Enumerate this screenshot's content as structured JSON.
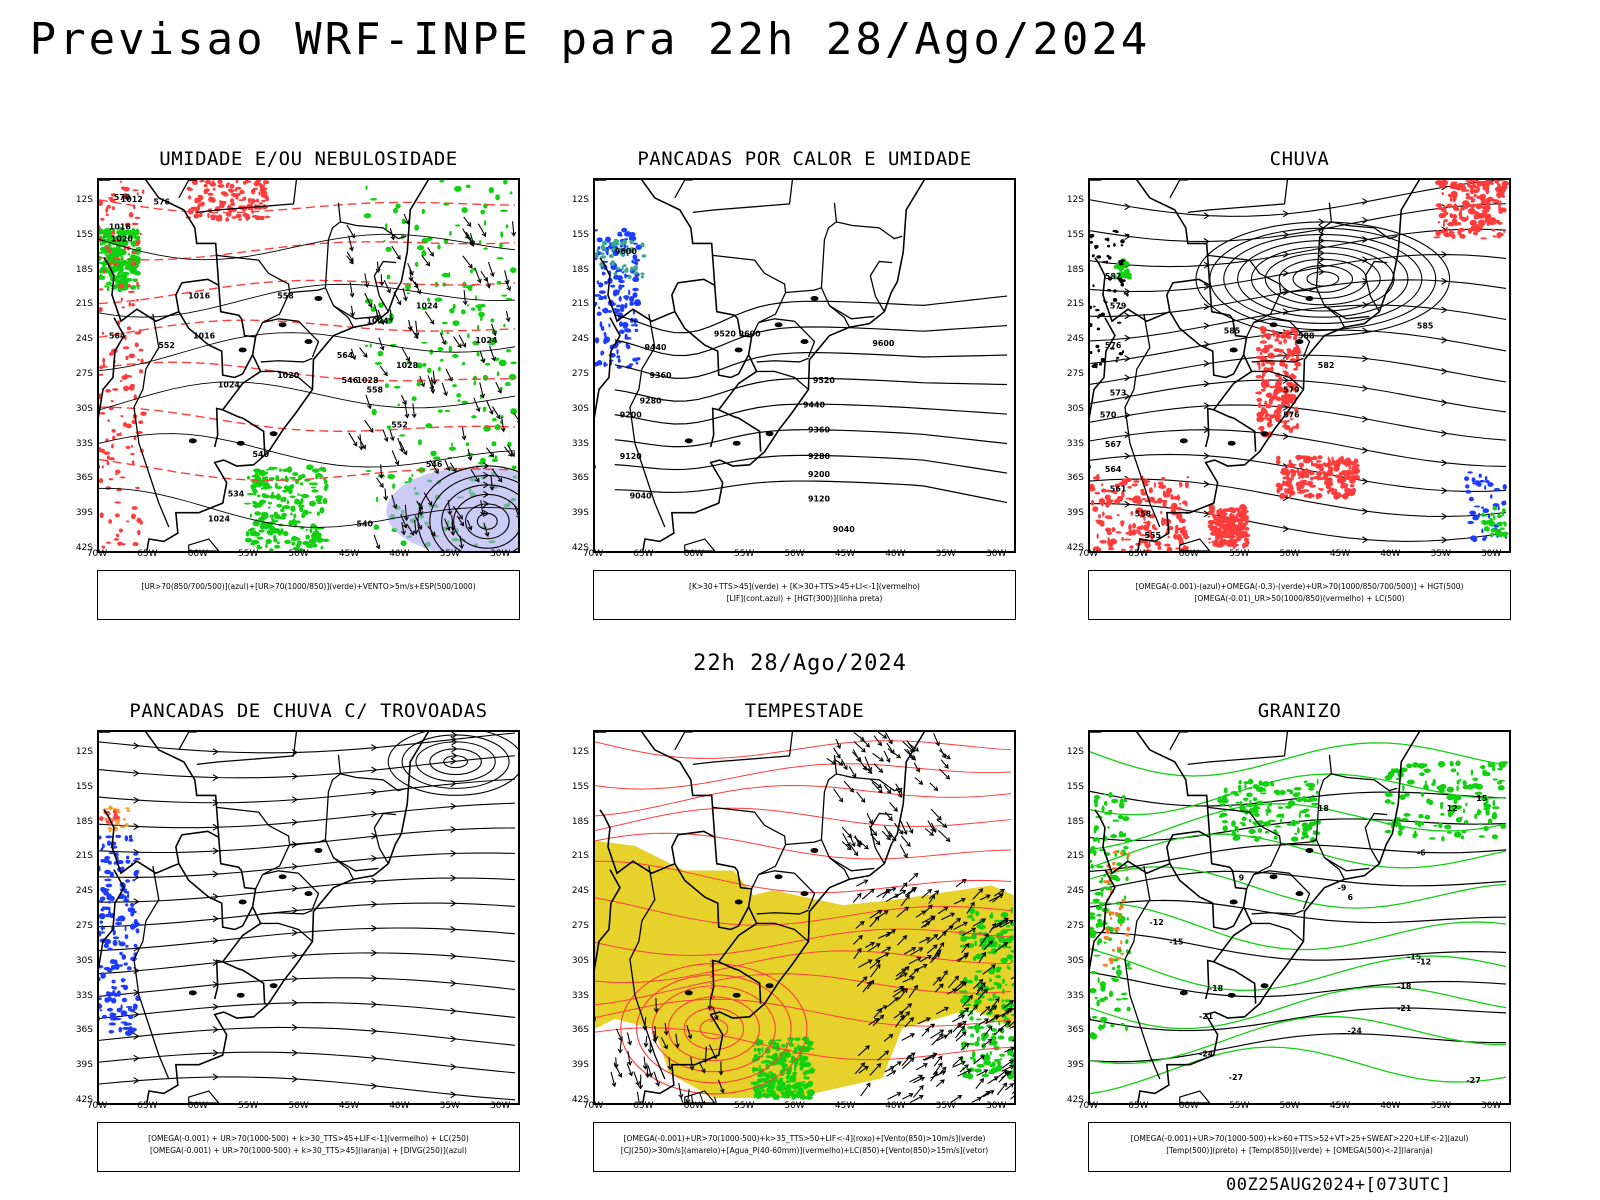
{
  "title": "Previsao WRF-INPE  para 22h 28/Ago/2024",
  "mid_date": "22h 28/Ago/2024",
  "footer_stamp": "00Z25AUG2024+[073UTC]",
  "lat_ticks": [
    "12S",
    "15S",
    "18S",
    "21S",
    "24S",
    "27S",
    "30S",
    "33S",
    "36S",
    "39S",
    "42S"
  ],
  "lon_ticks": [
    "70W",
    "65W",
    "60W",
    "55W",
    "50W",
    "45W",
    "40W",
    "35W",
    "30W"
  ],
  "colors": {
    "red": "#ff3c3c",
    "green": "#10d010",
    "blue": "#1e3cff",
    "yellow": "#e6d22a",
    "lavender": "#a8a8f0",
    "black": "#000000"
  },
  "panels": [
    {
      "id": "umidade",
      "title": "UMIDADE E/OU NEBULOSIDADE",
      "legend": [
        "[UR>70(850/700/500)](azul)+[UR>70(1000/850)](verde)+VENTO>5m/s+ESP(500/1000)"
      ],
      "contour_labels": [
        "1012",
        "1016",
        "1020",
        "1016",
        "1016",
        "1020",
        "1024",
        "1024",
        "1028",
        "1024",
        "1028",
        "1024",
        "1024",
        "570",
        "576",
        "564",
        "552",
        "558",
        "546",
        "540",
        "534",
        "540",
        "546",
        "552",
        "558",
        "564"
      ]
    },
    {
      "id": "pancadas-calor",
      "title": "PANCADAS POR CALOR E UMIDADE",
      "legend": [
        "[K>30+TTS>45](verde) + [K>30+TTS>45+LI<-1](vermelho)",
        "[LIF](cont.azul) + [HGT(300)](linha preta)"
      ],
      "contour_labels": [
        "9600",
        "9520",
        "9440",
        "9360",
        "9280",
        "9200",
        "9120",
        "9040",
        "9600",
        "9520",
        "9440",
        "9360",
        "9280",
        "9200",
        "9120",
        "9040",
        "9600"
      ]
    },
    {
      "id": "chuva",
      "title": "CHUVA",
      "legend": [
        "[OMEGA(-0.001)-(azul)+OMEGA(-0.3)-(verde)+UR>70(1000/850/700/500)] + HGT(500)",
        "[OMEGA(-0.01)_UR>50(1000/850)(vermelho) + LC(500)"
      ],
      "contour_labels": [
        "585",
        "582",
        "579",
        "576",
        "573",
        "570",
        "567",
        "564",
        "561",
        "558",
        "555",
        "588",
        "585",
        "582",
        "579",
        "576"
      ]
    },
    {
      "id": "trovoadas",
      "title": "PANCADAS DE CHUVA C/ TROVOADAS",
      "legend": [
        "[OMEGA(-0.001) + UR>70(1000-500) + k>30_TTS>45+LIF<-1](vermelho) + LC(250)",
        "[OMEGA(-0.001) + UR>70(1000-500) + k>30_TTS>45](laranja) + [DIVG(250)](azul)"
      ],
      "contour_labels": []
    },
    {
      "id": "tempestade",
      "title": "TEMPESTADE",
      "legend": [
        "[OMEGA(-0.001)+UR>70(1000-500)+k>35_TTS>50+LIF<-4](roxo)+[Vento(850)>10m/s](verde)",
        "[CJ(250)>30m/s](amarelo)+[Agua_P(40-60mm)](vermelho)+LC(850)+[Vento(850)>15m/s](vetor)"
      ],
      "contour_labels": []
    },
    {
      "id": "granizo",
      "title": "GRANIZO",
      "legend": [
        "[OMEGA(-0.001)+UR>70(1000-500)+k>60+TTS>52+VT>25+SWEAT>220+LIF<-2](azul)",
        "[Temp(500)](preto) + [Temp(850)](verde) + [OMEGA(500)<-2](laranja)"
      ],
      "contour_labels": [
        "-6",
        "-9",
        "-12",
        "-15",
        "-18",
        "-21",
        "-24",
        "-27",
        "-12",
        "-15",
        "-18",
        "-21",
        "-24",
        "-27",
        "12",
        "15",
        "18",
        "9",
        "6"
      ]
    }
  ]
}
